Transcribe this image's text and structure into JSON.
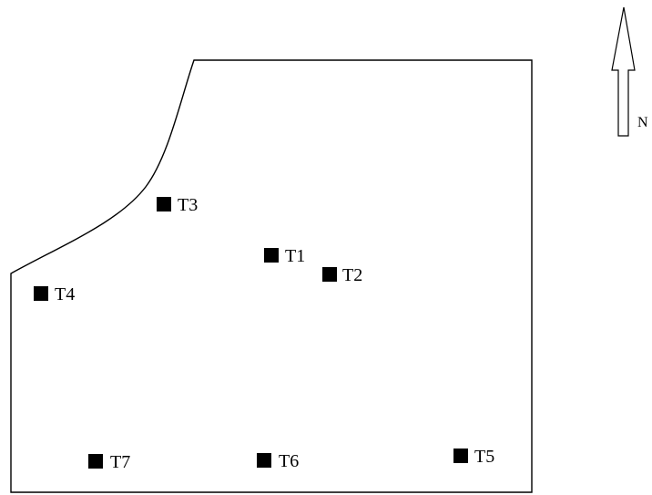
{
  "north_arrow": {
    "label": "N"
  },
  "stations": [
    {
      "id": "t1",
      "label": "T1"
    },
    {
      "id": "t2",
      "label": "T2"
    },
    {
      "id": "t3",
      "label": "T3"
    },
    {
      "id": "t4",
      "label": "T4"
    },
    {
      "id": "t5",
      "label": "T5"
    },
    {
      "id": "t6",
      "label": "T6"
    },
    {
      "id": "t7",
      "label": "T7"
    }
  ],
  "colors": {
    "marker": "#000000",
    "line": "#000000",
    "background": "#ffffff"
  }
}
